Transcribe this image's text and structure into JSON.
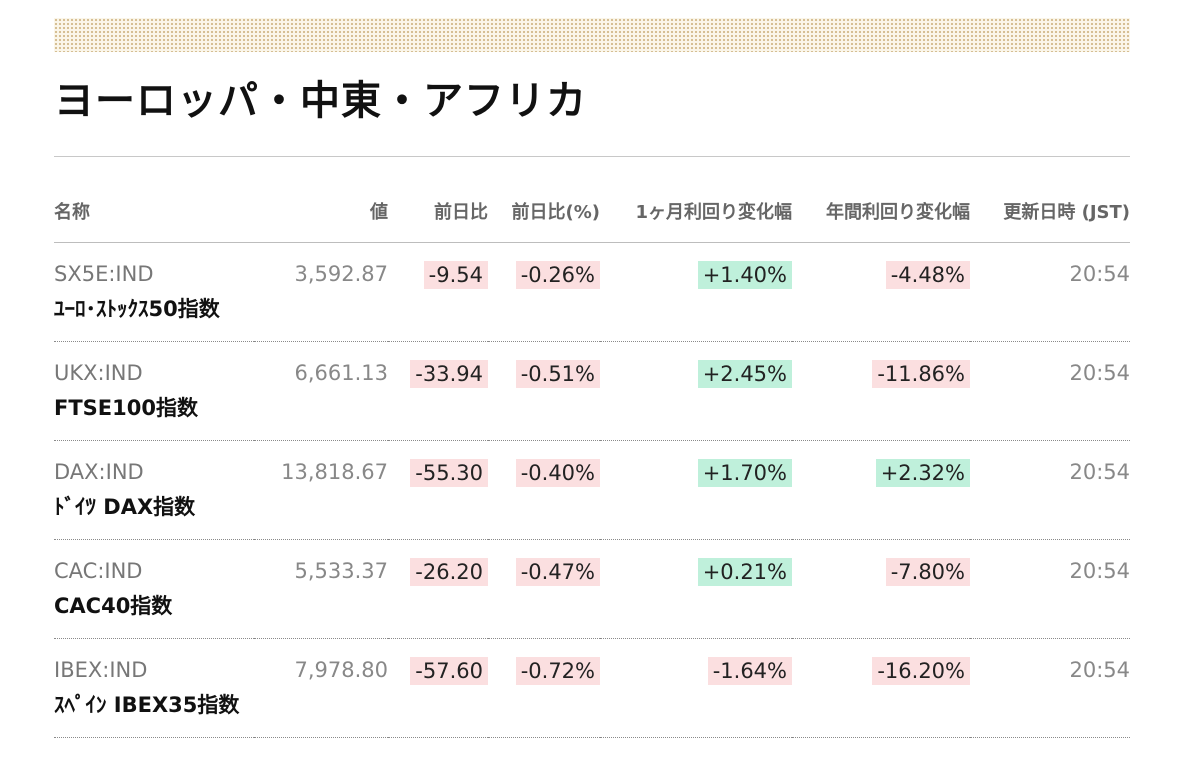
{
  "section": {
    "title": "ヨーロッパ・中東・アフリカ"
  },
  "colors": {
    "negative_bg": "#fbdfe0",
    "positive_bg": "#bff0db",
    "dots_band": "#d2b98a"
  },
  "table": {
    "headers": {
      "name": "名称",
      "value": "値",
      "change": "前日比",
      "change_pct": "前日比(%)",
      "one_month": "1ヶ月利回り変化幅",
      "one_year": "年間利回り変化幅",
      "updated": "更新日時 (JST)"
    },
    "rows": [
      {
        "symbol": "SX5E:IND",
        "name": "ﾕｰﾛ･ｽﾄｯｸｽ50指数",
        "value": "3,592.87",
        "change": "-9.54",
        "change_dir": "neg",
        "change_pct": "-0.26%",
        "change_pct_dir": "neg",
        "one_month": "+1.40%",
        "one_month_dir": "pos",
        "one_year": "-4.48%",
        "one_year_dir": "neg",
        "time": "20:54"
      },
      {
        "symbol": "UKX:IND",
        "name": "FTSE100指数",
        "value": "6,661.13",
        "change": "-33.94",
        "change_dir": "neg",
        "change_pct": "-0.51%",
        "change_pct_dir": "neg",
        "one_month": "+2.45%",
        "one_month_dir": "pos",
        "one_year": "-11.86%",
        "one_year_dir": "neg",
        "time": "20:54"
      },
      {
        "symbol": "DAX:IND",
        "name": "ﾄﾞｲﾂ DAX指数",
        "value": "13,818.67",
        "change": "-55.30",
        "change_dir": "neg",
        "change_pct": "-0.40%",
        "change_pct_dir": "neg",
        "one_month": "+1.70%",
        "one_month_dir": "pos",
        "one_year": "+2.32%",
        "one_year_dir": "pos",
        "time": "20:54"
      },
      {
        "symbol": "CAC:IND",
        "name": "CAC40指数",
        "value": "5,533.37",
        "change": "-26.20",
        "change_dir": "neg",
        "change_pct": "-0.47%",
        "change_pct_dir": "neg",
        "one_month": "+0.21%",
        "one_month_dir": "pos",
        "one_year": "-7.80%",
        "one_year_dir": "neg",
        "time": "20:54"
      },
      {
        "symbol": "IBEX:IND",
        "name": "ｽﾍﾟｲﾝ IBEX35指数",
        "value": "7,978.80",
        "change": "-57.60",
        "change_dir": "neg",
        "change_pct": "-0.72%",
        "change_pct_dir": "neg",
        "one_month": "-1.64%",
        "one_month_dir": "neg",
        "one_year": "-16.20%",
        "one_year_dir": "neg",
        "time": "20:54"
      }
    ]
  }
}
